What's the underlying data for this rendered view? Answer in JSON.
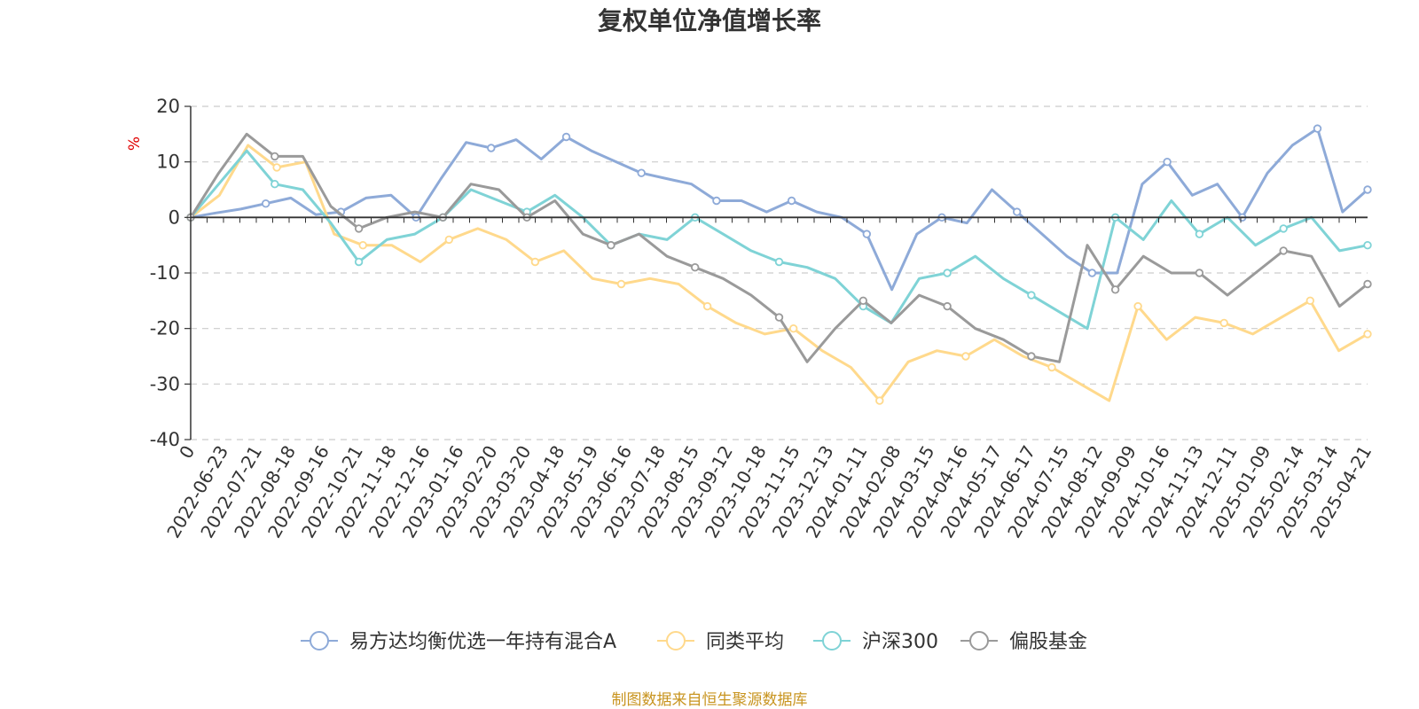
{
  "chart_data": {
    "type": "line",
    "title": "复权单位净值增长率",
    "ylabel": "%",
    "ylim": [
      -40,
      20
    ],
    "yticks": [
      20,
      10,
      0,
      -10,
      -20,
      -30,
      -40
    ],
    "grid": true,
    "legend_position": "bottom",
    "x_ticks": [
      "0",
      "2022-06-23",
      "2022-07-21",
      "2022-08-18",
      "2022-09-16",
      "2022-10-21",
      "2022-11-18",
      "2022-12-16",
      "2023-01-16",
      "2023-02-20",
      "2023-03-20",
      "2023-04-18",
      "2023-05-19",
      "2023-06-16",
      "2023-07-18",
      "2023-08-15",
      "2023-09-12",
      "2023-10-18",
      "2023-11-15",
      "2023-12-13",
      "2024-01-11",
      "2024-02-08",
      "2024-03-15",
      "2024-04-16",
      "2024-05-17",
      "2024-06-17",
      "2024-07-15",
      "2024-08-12",
      "2024-09-09",
      "2024-10-16",
      "2024-11-13",
      "2024-12-11",
      "2025-01-09",
      "2025-02-14",
      "2025-03-14",
      "2025-04-21"
    ],
    "series": [
      {
        "name": "易方达均衡优选一年持有混合A",
        "color": "#8eaad8",
        "values": [
          0,
          0.8,
          1.5,
          2.5,
          3.5,
          0.5,
          1,
          3.5,
          4,
          0,
          7,
          13.5,
          12.5,
          14,
          10.5,
          14.5,
          12,
          10,
          8,
          7,
          6,
          3,
          3,
          1,
          3,
          1,
          0,
          -3,
          -13,
          -3,
          0,
          -1,
          5,
          1,
          -3,
          -7,
          -10,
          -10,
          6,
          10,
          4,
          6,
          0,
          8,
          13,
          16,
          1,
          5
        ]
      },
      {
        "name": "同类平均",
        "color": "#ffd98c",
        "values": [
          0,
          4,
          13,
          9,
          10,
          -3,
          -5,
          -5,
          -8,
          -4,
          -2,
          -4,
          -8,
          -6,
          -11,
          -12,
          -11,
          -12,
          -16,
          -19,
          -21,
          -20,
          -24,
          -27,
          -33,
          -26,
          -24,
          -25,
          -22,
          -25,
          -27,
          -30,
          -33,
          -16,
          -22,
          -18,
          -19,
          -21,
          -18,
          -15,
          -24,
          -21
        ]
      },
      {
        "name": "沪深300",
        "color": "#7fd3d6",
        "values": [
          0,
          6,
          12,
          6,
          5,
          -1,
          -8,
          -4,
          -3,
          0,
          5,
          3,
          1,
          4,
          0,
          -5,
          -3,
          -4,
          0,
          -3,
          -6,
          -8,
          -9,
          -11,
          -16,
          -19,
          -11,
          -10,
          -7,
          -11,
          -14,
          -17,
          -20,
          0,
          -4,
          3,
          -3,
          0,
          -5,
          -2,
          0,
          -6,
          -5
        ]
      },
      {
        "name": "偏股基金",
        "color": "#9a9a9a",
        "values": [
          0,
          8,
          15,
          11,
          11,
          2,
          -2,
          0,
          1,
          0,
          6,
          5,
          0,
          3,
          -3,
          -5,
          -3,
          -7,
          -9,
          -11,
          -14,
          -18,
          -26,
          -20,
          -15,
          -19,
          -14,
          -16,
          -20,
          -22,
          -25,
          -26,
          -5,
          -13,
          -7,
          -10,
          -10,
          -14,
          -10,
          -6,
          -7,
          -16,
          -12
        ]
      }
    ]
  },
  "source_note": "制图数据来自恒生聚源数据库"
}
